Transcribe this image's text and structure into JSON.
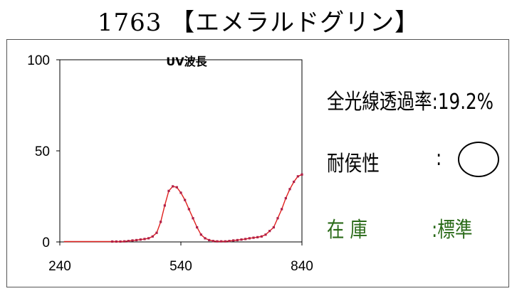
{
  "header": {
    "title": "1763 【エメラルドグリン】"
  },
  "info": {
    "transmittance_label": "全光線透過率",
    "transmittance_value": "19.2%",
    "weather_label": "耐侯性",
    "weather_colon": ":",
    "weather_rating": "○",
    "stock_label": "在 庫",
    "stock_value": "標準"
  },
  "chart_data": {
    "type": "line",
    "title": "UV波長",
    "xlabel": "",
    "ylabel": "",
    "xlim": [
      240,
      840
    ],
    "ylim": [
      0,
      100
    ],
    "x_ticks": [
      240,
      540,
      840
    ],
    "y_ticks": [
      0,
      50,
      100
    ],
    "grid": false,
    "colors": {
      "line": "#e0201e",
      "marker": "#b02048"
    },
    "series": [
      {
        "x": [
          250,
          260,
          270,
          280,
          290,
          300,
          310,
          320,
          330,
          340,
          350,
          360,
          370,
          380,
          390,
          400,
          410,
          420,
          430,
          440,
          450,
          460,
          470,
          480,
          490,
          500,
          510,
          520,
          530,
          540,
          550,
          560,
          570,
          580,
          590,
          600,
          610,
          620,
          630,
          640,
          650,
          660,
          670,
          680,
          690,
          700,
          710,
          720,
          730,
          740,
          750,
          760,
          770,
          780,
          790,
          800,
          810,
          820,
          830,
          840
        ],
        "values": [
          0.2,
          0.2,
          0.2,
          0.2,
          0.2,
          0.2,
          0.2,
          0.2,
          0.2,
          0.2,
          0.2,
          0.2,
          0.2,
          0.2,
          0.2,
          0.3,
          0.5,
          0.8,
          1.0,
          1.3,
          1.6,
          2.0,
          3.0,
          5.0,
          11.0,
          20.0,
          28.0,
          30.5,
          30.0,
          27.0,
          23.0,
          18.0,
          13.0,
          8.0,
          4.0,
          2.0,
          1.0,
          0.5,
          0.3,
          0.3,
          0.3,
          0.5,
          0.8,
          1.0,
          1.3,
          1.6,
          2.0,
          2.3,
          2.6,
          3.0,
          4.0,
          6.0,
          8.0,
          13.0,
          18.0,
          24.0,
          29.0,
          33.0,
          36.0,
          37.0
        ]
      }
    ]
  }
}
